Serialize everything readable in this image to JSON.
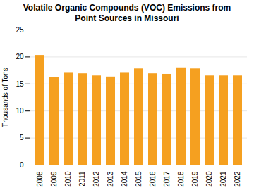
{
  "chart_data": {
    "type": "bar",
    "title": "Volatile Organic Compounds (VOC) Emissions from\nPoint Sources in Missouri",
    "ylabel": "Thousands of Tons",
    "categories": [
      "2008",
      "2009",
      "2010",
      "2011",
      "2012",
      "2013",
      "2014",
      "2015",
      "2016",
      "2017",
      "2018",
      "2019",
      "2020",
      "2021",
      "2022"
    ],
    "values": [
      20.3,
      16.2,
      17.0,
      16.9,
      16.5,
      16.3,
      17.0,
      17.8,
      16.9,
      16.8,
      18.0,
      17.8,
      16.5,
      16.5,
      16.5
    ],
    "color": "#F5A020",
    "ylim": [
      0,
      25
    ],
    "yticks": [
      0,
      5,
      10,
      15,
      20,
      25
    ],
    "grid": true
  }
}
